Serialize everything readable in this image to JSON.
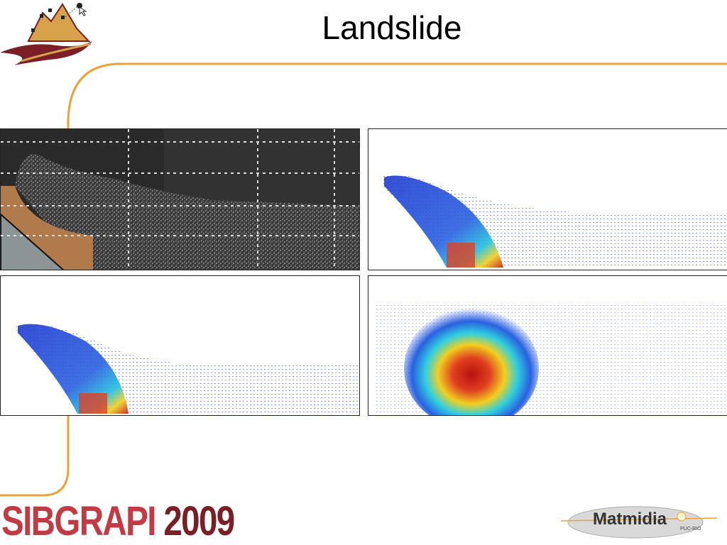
{
  "slide": {
    "title": "Landslide"
  },
  "panels": [
    {
      "id": "photo",
      "kind": "experiment-photo"
    },
    {
      "id": "sim-1",
      "kind": "velocity-field"
    },
    {
      "id": "sim-2",
      "kind": "velocity-field"
    },
    {
      "id": "sim-3",
      "kind": "velocity-field"
    }
  ],
  "footer": {
    "conference_logo": "SIBGRAPI 2009",
    "conference_logo_part1": "SIBGRAPI",
    "conference_logo_part2": "2009",
    "partner_logo": "Matmidia",
    "partner_sub": "PUC-RIO"
  },
  "colors": {
    "accent_line": "#e8a33a",
    "logo_red": "#c23a44",
    "logo_dark": "#7b1f27",
    "field_blue": "#1f3bd0",
    "field_red": "#c81a10"
  },
  "icons": [
    "mountain-logo-icon",
    "pointer-icon"
  ]
}
